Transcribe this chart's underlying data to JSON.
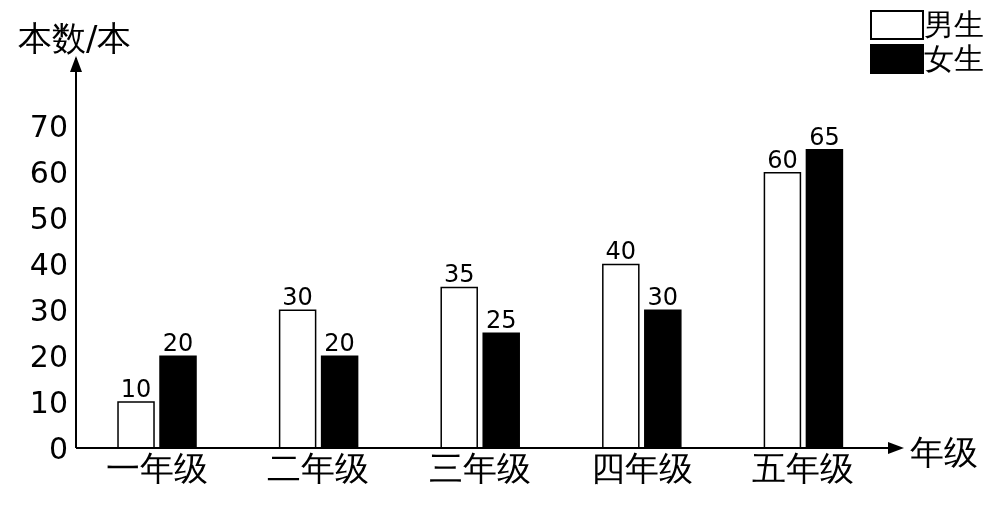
{
  "chart_data": {
    "type": "bar",
    "ylabel": "本数/本",
    "xlabel": "年级",
    "categories": [
      "一年级",
      "二年级",
      "三年级",
      "四年级",
      "五年级"
    ],
    "series": [
      {
        "name": "男生",
        "color": "#ffffff",
        "values": [
          10,
          30,
          35,
          40,
          60
        ]
      },
      {
        "name": "女生",
        "color": "#000000",
        "values": [
          20,
          20,
          25,
          30,
          65
        ]
      }
    ],
    "ylim": [
      0,
      85
    ],
    "yticks": [
      0,
      10,
      20,
      30,
      40,
      50,
      60,
      70
    ],
    "grid": false,
    "legend": "top right",
    "data_labels": true
  }
}
